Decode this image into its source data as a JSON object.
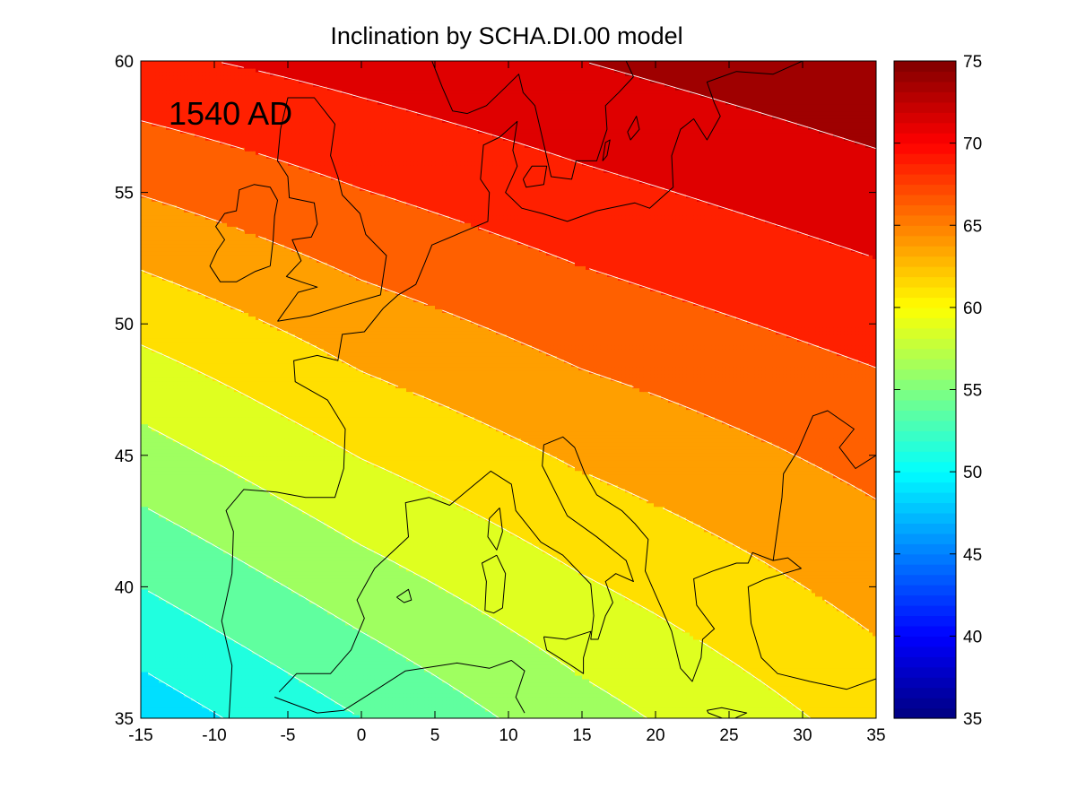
{
  "title": "Inclination by SCHA.DI.00 model",
  "annotation": "1540 AD",
  "colors": {
    "contour_line": "#ffffff",
    "coastline": "#000000",
    "frame": "#000000"
  },
  "chart_data": {
    "type": "heatmap",
    "title": "Inclination by SCHA.DI.00 model",
    "annotation": "1540 AD",
    "xlabel": "",
    "ylabel": "",
    "xlim": [
      -15,
      35
    ],
    "ylim": [
      35,
      60
    ],
    "x_ticks": [
      -15,
      -10,
      -5,
      0,
      5,
      10,
      15,
      20,
      25,
      30,
      35
    ],
    "y_ticks": [
      35,
      40,
      45,
      50,
      55,
      60
    ],
    "x_tick_labels": [
      "-15",
      "-10",
      "-5",
      "0",
      "5",
      "10",
      "15",
      "20",
      "25",
      "30",
      "35"
    ],
    "y_tick_labels": [
      "35",
      "40",
      "45",
      "50",
      "55",
      "60"
    ],
    "colorbar": {
      "range": [
        35,
        75
      ],
      "ticks": [
        35,
        40,
        45,
        50,
        55,
        60,
        65,
        70,
        75
      ],
      "tick_labels": [
        "35",
        "40",
        "45",
        "50",
        "55",
        "60",
        "65",
        "70",
        "75"
      ],
      "colormap": "jet"
    },
    "contour_interval": 2.5,
    "contour_levels": [
      50,
      52.5,
      55,
      57.5,
      60,
      62.5,
      65,
      67.5,
      70,
      72.5
    ],
    "field_samples": {
      "lon": [
        -15,
        0,
        15,
        35
      ],
      "lat": [
        35,
        47.5,
        60
      ],
      "inclination": [
        [
          48.5,
          52.5,
          56.5,
          61
        ],
        [
          58.5,
          62.0,
          64.5,
          67
        ],
        [
          69.5,
          71.0,
          72.5,
          74.5
        ]
      ]
    }
  }
}
